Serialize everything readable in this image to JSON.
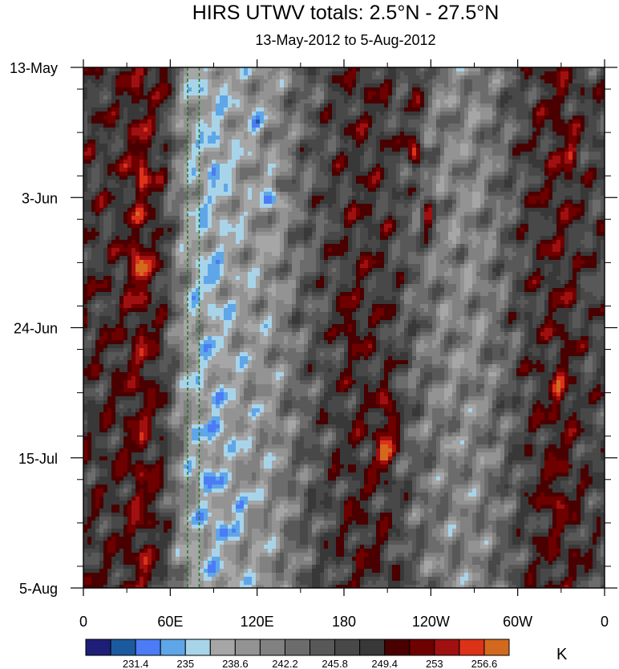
{
  "chart_data": {
    "type": "heatmap",
    "title": "HIRS UTWV totals: 2.5°N - 27.5°N",
    "subtitle": "13-May-2012 to 5-Aug-2012",
    "x_ticks": [
      {
        "lon": 0,
        "label": "0"
      },
      {
        "lon": 60,
        "label": "60E"
      },
      {
        "lon": 120,
        "label": "120E"
      },
      {
        "lon": 180,
        "label": "180"
      },
      {
        "lon": 240,
        "label": "120W"
      },
      {
        "lon": 300,
        "label": "60W"
      },
      {
        "lon": 360,
        "label": "0"
      }
    ],
    "y_ticks": [
      {
        "day": 0,
        "label": "13-May"
      },
      {
        "day": 21,
        "label": "3-Jun"
      },
      {
        "day": 42,
        "label": "24-Jun"
      },
      {
        "day": 63,
        "label": "15-Jul"
      },
      {
        "day": 84,
        "label": "5-Aug"
      }
    ],
    "xlim": [
      0,
      360
    ],
    "ylim_days": [
      0,
      84
    ],
    "reference_lines_lon": [
      72,
      80
    ],
    "reference_line_color": "#1f7a1f",
    "colorbar": {
      "unit": "K",
      "colors": [
        "#1e1e78",
        "#1c5aa0",
        "#4b7cf5",
        "#5fa6e8",
        "#a8d4ea",
        "#a6a6a6",
        "#939393",
        "#818181",
        "#6c6c6c",
        "#585858",
        "#484848",
        "#383838",
        "#4a0000",
        "#6e0000",
        "#a01010",
        "#dc3218",
        "#d2691e"
      ],
      "labels": [
        "231.4",
        "235",
        "238.6",
        "242.2",
        "245.8",
        "249.4",
        "253",
        "256.6"
      ]
    },
    "bands": [
      {
        "lon": 5,
        "value": 248.0
      },
      {
        "lon": 25,
        "value": 248.5
      },
      {
        "lon": 40,
        "value": 251.5
      },
      {
        "lon": 55,
        "value": 248.0
      },
      {
        "lon": 65,
        "value": 242.0
      },
      {
        "lon": 75,
        "value": 238.0
      },
      {
        "lon": 90,
        "value": 237.0
      },
      {
        "lon": 108,
        "value": 239.0
      },
      {
        "lon": 130,
        "value": 240.0
      },
      {
        "lon": 150,
        "value": 244.0
      },
      {
        "lon": 170,
        "value": 247.0
      },
      {
        "lon": 190,
        "value": 249.0
      },
      {
        "lon": 210,
        "value": 248.0
      },
      {
        "lon": 230,
        "value": 244.0
      },
      {
        "lon": 250,
        "value": 241.5
      },
      {
        "lon": 270,
        "value": 241.0
      },
      {
        "lon": 290,
        "value": 244.0
      },
      {
        "lon": 310,
        "value": 248.0
      },
      {
        "lon": 330,
        "value": 250.0
      },
      {
        "lon": 350,
        "value": 247.0
      }
    ],
    "hotspots": [
      {
        "lon": 40,
        "day": 17,
        "value": 256.0
      },
      {
        "lon": 38,
        "day": 32,
        "value": 258.0
      },
      {
        "lon": 183,
        "day": 41,
        "value": 254.0
      },
      {
        "lon": 228,
        "day": 13,
        "value": 256.5
      },
      {
        "lon": 238,
        "day": 24,
        "value": 255.0
      },
      {
        "lon": 230,
        "day": 4,
        "value": 254.5
      },
      {
        "lon": 208,
        "day": 62,
        "value": 259.0
      },
      {
        "lon": 212,
        "day": 56,
        "value": 256.0
      },
      {
        "lon": 329,
        "day": 53,
        "value": 254.5
      },
      {
        "lon": 325,
        "day": 69,
        "value": 254.0
      },
      {
        "lon": 337,
        "day": 14,
        "value": 253.8
      },
      {
        "lon": 57,
        "day": 1,
        "value": 254.0
      }
    ],
    "coldspots": [
      {
        "lon": 92,
        "day": 16,
        "value": 233.0
      },
      {
        "lon": 130,
        "day": 21,
        "value": 232.0
      },
      {
        "lon": 84,
        "day": 34,
        "value": 234.0
      },
      {
        "lon": 95,
        "day": 58,
        "value": 233.5
      },
      {
        "lon": 85,
        "day": 66,
        "value": 234.0
      },
      {
        "lon": 106,
        "day": 71,
        "value": 233.0
      },
      {
        "lon": 96,
        "day": 75,
        "value": 234.5
      },
      {
        "lon": 118,
        "day": 9,
        "value": 234.5
      }
    ]
  }
}
